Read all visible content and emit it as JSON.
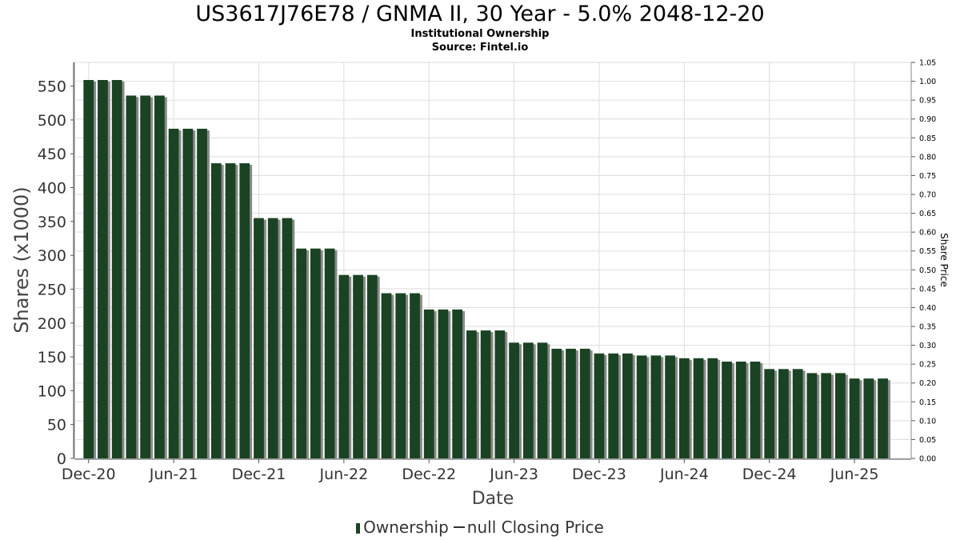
{
  "header": {
    "title": "US3617J76E78 / GNMA II, 30 Year - 5.0% 2048-12-20",
    "subtitle1": "Institutional Ownership",
    "subtitle2": "Source: Fintel.io"
  },
  "legend": {
    "ownership": "Ownership",
    "closing_price": "null Closing Price"
  },
  "colors": {
    "bar": "#1a4323",
    "bar_shadow": "#8a8a8a",
    "grid": "#dddddd",
    "axis": "#888888"
  },
  "chart_data": {
    "type": "bar",
    "xlabel": "Date",
    "ylabel": "Shares (x1000)",
    "y2label": "Share Price",
    "ylim": [
      0,
      585
    ],
    "y2lim": [
      0,
      1.05
    ],
    "yticks": [
      0,
      50,
      100,
      150,
      200,
      250,
      300,
      350,
      400,
      450,
      500,
      550
    ],
    "y2ticks": [
      "0.00",
      "0.05",
      "0.10",
      "0.15",
      "0.20",
      "0.25",
      "0.30",
      "0.35",
      "0.40",
      "0.45",
      "0.50",
      "0.55",
      "0.60",
      "0.65",
      "0.70",
      "0.75",
      "0.80",
      "0.85",
      "0.90",
      "0.95",
      "1.00",
      "1.05"
    ],
    "xtick_labels": [
      "Dec-20",
      "Jun-21",
      "Dec-21",
      "Jun-22",
      "Dec-22",
      "Jun-23",
      "Dec-23",
      "Jun-24",
      "Dec-24",
      "Jun-25"
    ],
    "x_start": "2020-11",
    "x_end": "2025-10",
    "grid": true,
    "legend_position": "bottom-center",
    "series": [
      {
        "name": "Ownership",
        "x": [
          "2020-12",
          "2021-01",
          "2021-02",
          "2021-03",
          "2021-04",
          "2021-05",
          "2021-06",
          "2021-07",
          "2021-08",
          "2021-09",
          "2021-10",
          "2021-11",
          "2021-12",
          "2022-01",
          "2022-02",
          "2022-03",
          "2022-04",
          "2022-05",
          "2022-06",
          "2022-07",
          "2022-08",
          "2022-09",
          "2022-10",
          "2022-11",
          "2022-12",
          "2023-01",
          "2023-02",
          "2023-03",
          "2023-04",
          "2023-05",
          "2023-06",
          "2023-07",
          "2023-08",
          "2023-09",
          "2023-10",
          "2023-11",
          "2023-12",
          "2024-01",
          "2024-02",
          "2024-03",
          "2024-04",
          "2024-05",
          "2024-06",
          "2024-07",
          "2024-08",
          "2024-09",
          "2024-10",
          "2024-11",
          "2024-12",
          "2025-01",
          "2025-02",
          "2025-03",
          "2025-04",
          "2025-05",
          "2025-06",
          "2025-07",
          "2025-08"
        ],
        "values": [
          559,
          559,
          559,
          536,
          536,
          536,
          487,
          487,
          487,
          436,
          436,
          436,
          355,
          355,
          355,
          310,
          310,
          310,
          271,
          271,
          271,
          244,
          244,
          244,
          220,
          220,
          220,
          189,
          189,
          189,
          171,
          171,
          171,
          162,
          162,
          162,
          155,
          155,
          155,
          152,
          152,
          152,
          148,
          148,
          148,
          143,
          143,
          143,
          132,
          132,
          132,
          126,
          126,
          126,
          118,
          118,
          118
        ]
      }
    ]
  }
}
